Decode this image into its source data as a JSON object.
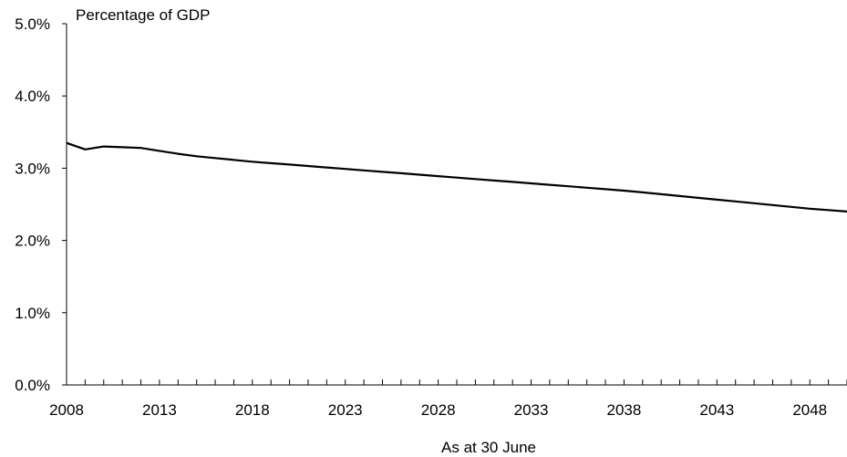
{
  "chart_data": {
    "type": "line",
    "ylabel": "Percentage of GDP",
    "xlabel": "As at 30 June",
    "xlim": [
      2008,
      2050
    ],
    "ylim": [
      0,
      5
    ],
    "grid": false,
    "y_ticks": [
      {
        "value": 0,
        "label": "0.0%"
      },
      {
        "value": 1,
        "label": "1.0%"
      },
      {
        "value": 2,
        "label": "2.0%"
      },
      {
        "value": 3,
        "label": "3.0%"
      },
      {
        "value": 4,
        "label": "4.0%"
      },
      {
        "value": 5,
        "label": "5.0%"
      }
    ],
    "x_ticks": [
      {
        "value": 2008,
        "label": "2008"
      },
      {
        "value": 2013,
        "label": "2013"
      },
      {
        "value": 2018,
        "label": "2018"
      },
      {
        "value": 2023,
        "label": "2023"
      },
      {
        "value": 2028,
        "label": "2028"
      },
      {
        "value": 2033,
        "label": "2033"
      },
      {
        "value": 2038,
        "label": "2038"
      },
      {
        "value": 2043,
        "label": "2043"
      },
      {
        "value": 2048,
        "label": "2048"
      }
    ],
    "series": [
      {
        "color": "#000000",
        "x": [
          2008,
          2009,
          2010,
          2011,
          2012,
          2013,
          2014,
          2015,
          2016,
          2017,
          2018,
          2019,
          2020,
          2021,
          2022,
          2023,
          2024,
          2025,
          2026,
          2027,
          2028,
          2029,
          2030,
          2031,
          2032,
          2033,
          2034,
          2035,
          2036,
          2037,
          2038,
          2039,
          2040,
          2041,
          2042,
          2043,
          2044,
          2045,
          2046,
          2047,
          2048,
          2049,
          2050
        ],
        "y": [
          3.35,
          3.26,
          3.3,
          3.29,
          3.28,
          3.24,
          3.2,
          3.165,
          3.14,
          3.115,
          3.09,
          3.07,
          3.05,
          3.03,
          3.01,
          2.99,
          2.97,
          2.95,
          2.93,
          2.91,
          2.89,
          2.87,
          2.85,
          2.83,
          2.81,
          2.79,
          2.77,
          2.75,
          2.73,
          2.71,
          2.69,
          2.665,
          2.64,
          2.615,
          2.59,
          2.565,
          2.54,
          2.515,
          2.49,
          2.465,
          2.44,
          2.42,
          2.4
        ]
      }
    ]
  }
}
